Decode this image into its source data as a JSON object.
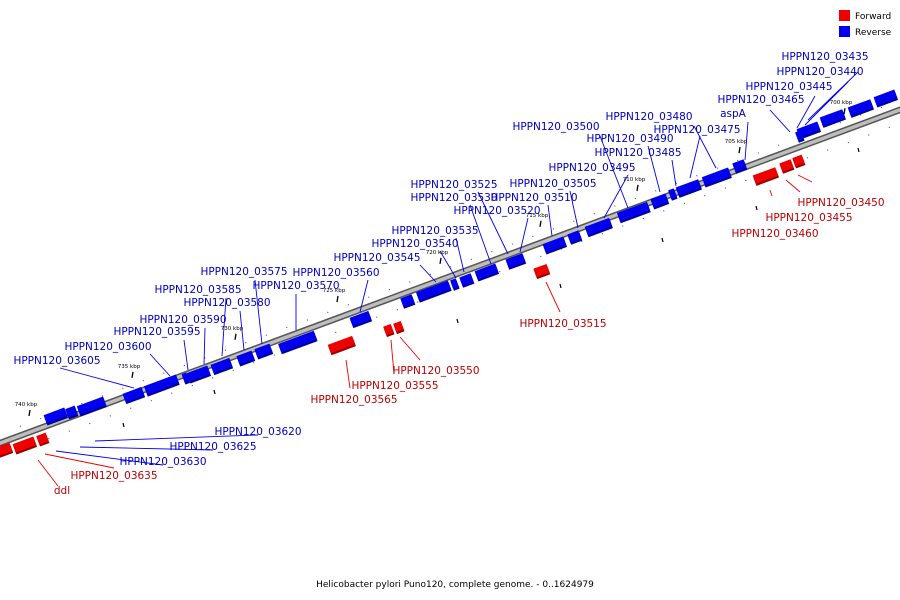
{
  "legend": [
    {
      "label": "Forward",
      "color": "#ee0000"
    },
    {
      "label": "Reverse",
      "color": "#0000ee"
    }
  ],
  "caption": "Helicobacter pylori Puno120, complete genome. - 0..1624979",
  "colors": {
    "forward": "#ee0000",
    "reverse": "#0000ee",
    "backbone": "#888888"
  },
  "ticks": [
    "700 kbp",
    "705 kbp",
    "710 kbp",
    "715 kbp",
    "720 kbp",
    "725 kbp",
    "730 kbp",
    "735 kbp",
    "740 kbp"
  ],
  "genes": {
    "reverse": [
      "HPPN120_03435",
      "HPPN120_03440",
      "HPPN120_03445",
      "HPPN120_03465",
      "aspA",
      "HPPN120_03480",
      "HPPN120_03475",
      "HPPN120_03500",
      "HPPN120_03490",
      "HPPN120_03485",
      "HPPN120_03495",
      "HPPN120_03505",
      "HPPN120_03510",
      "HPPN120_03525",
      "HPPN120_03530",
      "HPPN120_03520",
      "HPPN120_03535",
      "HPPN120_03540",
      "HPPN120_03545",
      "HPPN120_03560",
      "HPPN120_03575",
      "HPPN120_03570",
      "HPPN120_03585",
      "HPPN120_03580",
      "HPPN120_03590",
      "HPPN120_03595",
      "HPPN120_03600",
      "HPPN120_03605",
      "HPPN120_03620",
      "HPPN120_03625",
      "HPPN120_03630"
    ],
    "forward": [
      "HPPN120_03450",
      "HPPN120_03455",
      "HPPN120_03460",
      "HPPN120_03515",
      "HPPN120_03550",
      "HPPN120_03555",
      "HPPN120_03565",
      "HPPN120_03635",
      "ddl"
    ]
  }
}
